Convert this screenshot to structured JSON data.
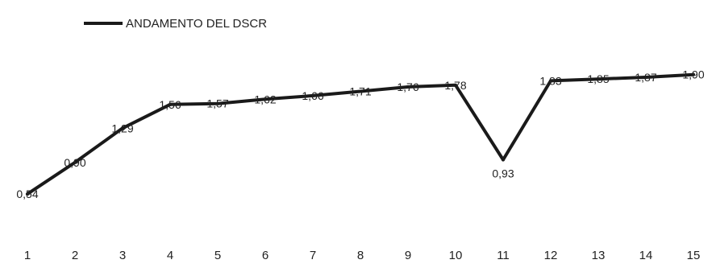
{
  "chart_data": {
    "type": "line",
    "categories": [
      "1",
      "2",
      "3",
      "4",
      "5",
      "6",
      "7",
      "8",
      "9",
      "10",
      "11",
      "12",
      "13",
      "14",
      "15"
    ],
    "series": [
      {
        "name": "ANDAMENTO DEL DSCR",
        "values": [
          0.54,
          0.9,
          1.29,
          1.56,
          1.57,
          1.62,
          1.66,
          1.71,
          1.76,
          1.78,
          0.93,
          1.83,
          1.85,
          1.87,
          1.9
        ],
        "labels": [
          "0,54",
          "0,90",
          "1,29",
          "1,56",
          "1,57",
          "1,62",
          "1,66",
          "1,71",
          "1,76",
          "1,78",
          "0,93",
          "1,83",
          "1,85",
          "1,87",
          "1,90"
        ],
        "color": "#1a1a1a"
      }
    ],
    "title": "",
    "xlabel": "",
    "ylabel": "",
    "ylim": [
      0,
      2.2
    ],
    "grid": false,
    "legend_position": "top-left"
  }
}
